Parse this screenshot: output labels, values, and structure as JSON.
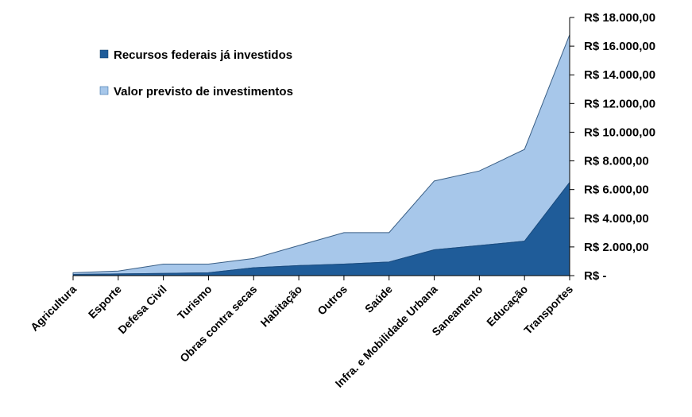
{
  "chart_data": {
    "type": "area",
    "stacked": true,
    "categories": [
      "Agricultura",
      "Esporte",
      "Defesa Civil",
      "Turismo",
      "Obras contra secas",
      "Habitação",
      "Outros",
      "Saúde",
      "Infra. e Mobilidade Urbana",
      "Saneamento",
      "Educação",
      "Transportes"
    ],
    "series": [
      {
        "name": "Recursos federais já investidos",
        "color": "#1f5c99",
        "values": [
          80,
          120,
          150,
          200,
          550,
          700,
          800,
          950,
          1800,
          2100,
          2400,
          6500
        ]
      },
      {
        "name": "Valor previsto de investimentos",
        "color": "#a7c7ea",
        "values": [
          120,
          200,
          650,
          600,
          650,
          1400,
          2200,
          2050,
          4800,
          5200,
          6400,
          10300
        ]
      }
    ],
    "ylim": [
      0,
      18000
    ],
    "yticks": [
      0,
      2000,
      4000,
      6000,
      8000,
      10000,
      12000,
      14000,
      16000,
      18000
    ],
    "ytick_labels": [
      "R$ -",
      "R$ 2.000,00",
      "R$ 4.000,00",
      "R$ 6.000,00",
      "R$ 8.000,00",
      "R$ 10.000,00",
      "R$ 12.000,00",
      "R$ 14.000,00",
      "R$ 16.000,00",
      "R$ 18.000,00"
    ],
    "y_axis_side": "right",
    "grid": false,
    "legend_position": "top-left",
    "title": "",
    "xlabel": "",
    "ylabel": ""
  }
}
